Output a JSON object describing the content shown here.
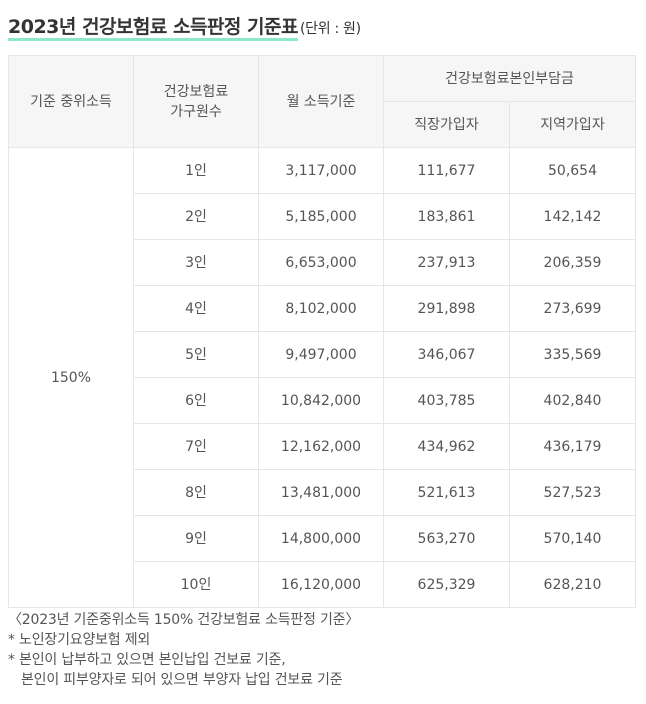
{
  "title": {
    "main": "2023년 건강보험료 소득판정 기준표",
    "unit": "(단위 : 원)"
  },
  "table": {
    "headers": {
      "median_income": "기준 중위소득",
      "household_line1": "건강보험료",
      "household_line2": "가구원수",
      "monthly_income": "월 소득기준",
      "self_pay": "건강보험료본인부담금",
      "employee": "직장가입자",
      "regional": "지역가입자"
    },
    "median_value": "150%",
    "rows": [
      {
        "members": "1인",
        "income": "3,117,000",
        "employee": "111,677",
        "regional": "50,654"
      },
      {
        "members": "2인",
        "income": "5,185,000",
        "employee": "183,861",
        "regional": "142,142"
      },
      {
        "members": "3인",
        "income": "6,653,000",
        "employee": "237,913",
        "regional": "206,359"
      },
      {
        "members": "4인",
        "income": "8,102,000",
        "employee": "291,898",
        "regional": "273,699"
      },
      {
        "members": "5인",
        "income": "9,497,000",
        "employee": "346,067",
        "regional": "335,569"
      },
      {
        "members": "6인",
        "income": "10,842,000",
        "employee": "403,785",
        "regional": "402,840"
      },
      {
        "members": "7인",
        "income": "12,162,000",
        "employee": "434,962",
        "regional": "436,179"
      },
      {
        "members": "8인",
        "income": "13,481,000",
        "employee": "521,613",
        "regional": "527,523"
      },
      {
        "members": "9인",
        "income": "14,800,000",
        "employee": "563,270",
        "regional": "570,140"
      },
      {
        "members": "10인",
        "income": "16,120,000",
        "employee": "625,329",
        "regional": "628,210"
      }
    ]
  },
  "notes": {
    "caption": "〈2023년 기준중위소득 150% 건강보험료 소득판정 기준〉",
    "note1": "* 노인장기요양보험 제외",
    "note2_line1": "* 본인이 납부하고 있으면 본인납입 건보료 기준,",
    "note2_line2": "본인이 피부양자로 되어 있으면 부양자 납입 건보료 기준"
  },
  "colors": {
    "title_underline": "#7fe6c8",
    "header_bg": "#f6f6f6",
    "border": "#e6e6e6",
    "text": "#555555"
  }
}
